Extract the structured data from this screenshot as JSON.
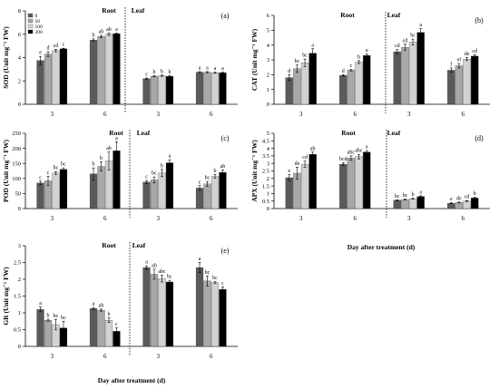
{
  "colors": {
    "series": [
      "#5a5a5a",
      "#a8a8a8",
      "#d2d2d2",
      "#000000"
    ],
    "axis": "#000000",
    "error_bar": "#000000"
  },
  "chart_data": [
    {
      "type": "bar",
      "panel": "(a)",
      "ylabel": "SOD (Unit mg⁻¹ FW)",
      "xlabel": "",
      "ylim": [
        0,
        8
      ],
      "yticks": [
        0,
        2,
        4,
        6,
        8
      ],
      "sections": [
        "Root",
        "Leaf"
      ],
      "categories": [
        "3",
        "6",
        "3",
        "6"
      ],
      "legend": [
        "0",
        "50",
        "100",
        "200"
      ],
      "series": [
        {
          "name": "0",
          "values": [
            3.75,
            5.5,
            2.2,
            2.75
          ],
          "errors": [
            0.35,
            0.1,
            0.05,
            0.05
          ],
          "letters": [
            "e",
            "b",
            "c",
            "a"
          ]
        },
        {
          "name": "50",
          "values": [
            4.3,
            5.8,
            2.4,
            2.75
          ],
          "errors": [
            0.2,
            0.1,
            0.05,
            0.05
          ],
          "letters": [
            "d",
            "ab",
            "b",
            "a"
          ]
        },
        {
          "name": "100",
          "values": [
            4.6,
            6.0,
            2.45,
            2.7
          ],
          "errors": [
            0.1,
            0.1,
            0.05,
            0.05
          ],
          "letters": [
            "cd",
            "ab",
            "b",
            "a"
          ]
        },
        {
          "name": "200",
          "values": [
            4.75,
            6.05,
            2.4,
            2.7
          ],
          "errors": [
            0.05,
            0.05,
            0.05,
            0.05
          ],
          "letters": [
            "c",
            "a",
            "b",
            "a"
          ]
        }
      ]
    },
    {
      "type": "bar",
      "panel": "(b)",
      "ylabel": "CAT (Unit mg⁻¹ FW)",
      "xlabel": "",
      "ylim": [
        0,
        6
      ],
      "yticks": [
        0,
        1,
        2,
        3,
        4,
        5,
        6
      ],
      "sections": [
        "Root",
        "Leaf"
      ],
      "categories": [
        "3",
        "6",
        "3",
        "6"
      ],
      "series": [
        {
          "name": "0",
          "values": [
            1.8,
            1.95,
            3.55,
            2.3
          ],
          "errors": [
            0.2,
            0.05,
            0.15,
            0.15
          ],
          "letters": [
            "d",
            "d",
            "cd",
            "f"
          ]
        },
        {
          "name": "50",
          "values": [
            2.4,
            2.3,
            3.85,
            2.6
          ],
          "errors": [
            0.25,
            0.05,
            0.2,
            0.15
          ],
          "letters": [
            "bc",
            "c",
            "cd",
            "ef"
          ]
        },
        {
          "name": "100",
          "values": [
            2.8,
            2.85,
            4.2,
            3.05
          ],
          "errors": [
            0.25,
            0.1,
            0.2,
            0.1
          ],
          "letters": [
            "bc",
            "b",
            "bc",
            "de"
          ]
        },
        {
          "name": "200",
          "values": [
            3.45,
            3.3,
            4.85,
            3.25
          ],
          "errors": [
            0.3,
            0.1,
            0.25,
            0.1
          ],
          "letters": [
            "a",
            "a",
            "a",
            "cd"
          ]
        }
      ]
    },
    {
      "type": "bar",
      "panel": "(c)",
      "ylabel": "POD (Unit mg⁻¹ FW)",
      "xlabel": "",
      "ylim": [
        0,
        250
      ],
      "yticks": [
        0,
        50,
        100,
        150,
        200,
        250
      ],
      "sections": [
        "Root",
        "Leaf"
      ],
      "categories": [
        "3",
        "6",
        "3",
        "6"
      ],
      "series": [
        {
          "name": "0",
          "values": [
            85,
            115,
            88,
            68
          ],
          "errors": [
            6,
            20,
            5,
            8
          ],
          "letters": [
            "c",
            "b",
            "c",
            "c"
          ]
        },
        {
          "name": "50",
          "values": [
            92,
            140,
            95,
            82
          ],
          "errors": [
            15,
            15,
            10,
            8
          ],
          "letters": [
            "c",
            "b",
            "bc",
            "bc"
          ]
        },
        {
          "name": "100",
          "values": [
            118,
            158,
            118,
            107
          ],
          "errors": [
            5,
            30,
            12,
            6
          ],
          "letters": [
            "bc",
            "ab",
            "b",
            "b"
          ]
        },
        {
          "name": "200",
          "values": [
            130,
            192,
            152,
            120
          ],
          "errors": [
            5,
            30,
            10,
            8
          ],
          "letters": [
            "bc",
            "a",
            "a",
            "ab"
          ]
        }
      ]
    },
    {
      "type": "bar",
      "panel": "(d)",
      "ylabel": "APX (Unit mg⁻¹ FW)",
      "xlabel": "Day after treatment (d)",
      "ylim": [
        0,
        5
      ],
      "yticks": [
        0,
        0.5,
        1,
        1.5,
        2,
        2.5,
        3,
        3.5,
        4,
        4.5,
        5
      ],
      "sections": [
        "Root",
        "Leaf"
      ],
      "categories": [
        "3",
        "6",
        "3",
        "6"
      ],
      "series": [
        {
          "name": "0",
          "values": [
            2.05,
            2.95,
            0.55,
            0.35
          ],
          "errors": [
            0.2,
            0.1,
            0.03,
            0.03
          ],
          "letters": [
            "e",
            "bcd",
            "bc",
            "e"
          ]
        },
        {
          "name": "50",
          "values": [
            2.35,
            3.35,
            0.6,
            0.4
          ],
          "errors": [
            0.4,
            0.15,
            0.03,
            0.03
          ],
          "letters": [
            "de",
            "abc",
            "bc",
            "de"
          ]
        },
        {
          "name": "100",
          "values": [
            2.95,
            3.45,
            0.65,
            0.5
          ],
          "errors": [
            0.2,
            0.15,
            0.03,
            0.03
          ],
          "letters": [
            "cd",
            "abc",
            "b",
            "cd"
          ]
        },
        {
          "name": "200",
          "values": [
            3.6,
            3.75,
            0.8,
            0.7
          ],
          "errors": [
            0.15,
            0.1,
            0.05,
            0.05
          ],
          "letters": [
            "ab",
            "a",
            "a",
            "b"
          ]
        }
      ]
    },
    {
      "type": "bar",
      "panel": "(e)",
      "ylabel": "GR (Unit mg⁻¹ FW)",
      "xlabel": "Day after treatment (d)",
      "ylim": [
        0,
        3
      ],
      "yticks": [
        0,
        0.5,
        1,
        1.5,
        2,
        2.5,
        3
      ],
      "sections": [
        "Root",
        "Leaf"
      ],
      "categories": [
        "3",
        "6",
        "3",
        "6"
      ],
      "series": [
        {
          "name": "0",
          "values": [
            1.1,
            1.13,
            2.35,
            2.35
          ],
          "errors": [
            0.07,
            0.03,
            0.05,
            0.15
          ],
          "letters": [
            "a",
            "a",
            "a",
            "a"
          ]
        },
        {
          "name": "50",
          "values": [
            0.78,
            1.08,
            2.15,
            1.95
          ],
          "errors": [
            0.03,
            0.03,
            0.15,
            0.15
          ],
          "letters": [
            "b",
            "ab",
            "ab",
            "bc"
          ]
        },
        {
          "name": "100",
          "values": [
            0.65,
            0.78,
            2.02,
            1.9
          ],
          "errors": [
            0.15,
            0.07,
            0.1,
            0.03
          ],
          "letters": [
            "bc",
            "b",
            "abc",
            "bc"
          ]
        },
        {
          "name": "200",
          "values": [
            0.55,
            0.45,
            1.92,
            1.7
          ],
          "errors": [
            0.2,
            0.1,
            0.05,
            0.07
          ],
          "letters": [
            "bc",
            "c",
            "bc",
            "c"
          ]
        }
      ]
    }
  ]
}
